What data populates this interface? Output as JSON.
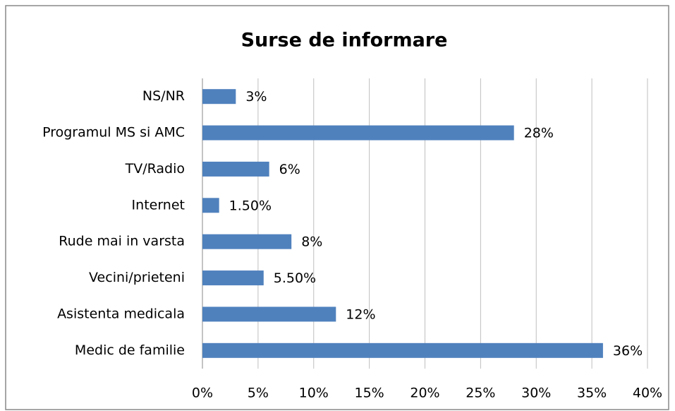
{
  "chart_data": {
    "type": "bar",
    "orientation": "horizontal",
    "title": "Surse de informare",
    "categories": [
      "NS/NR",
      "Programul MS si AMC",
      "TV/Radio",
      "Internet",
      "Rude mai in varsta",
      "Vecini/prieteni",
      "Asistenta medicala",
      "Medic de familie"
    ],
    "values": [
      3,
      28,
      6,
      1.5,
      8,
      5.5,
      12,
      36
    ],
    "value_labels": [
      "3%",
      "28%",
      "6%",
      "1.50%",
      "8%",
      "5.50%",
      "12%",
      "36%"
    ],
    "color": "#4f81bd",
    "xlim": [
      0,
      40
    ],
    "xticks": [
      {
        "value": 0,
        "label": "0%"
      },
      {
        "value": 5,
        "label": "5%"
      },
      {
        "value": 10,
        "label": "10%"
      },
      {
        "value": 15,
        "label": "15%"
      },
      {
        "value": 20,
        "label": "20%"
      },
      {
        "value": 25,
        "label": "25%"
      },
      {
        "value": 30,
        "label": "30%"
      },
      {
        "value": 35,
        "label": "35%"
      },
      {
        "value": 40,
        "label": "40%"
      }
    ],
    "grid": true
  }
}
